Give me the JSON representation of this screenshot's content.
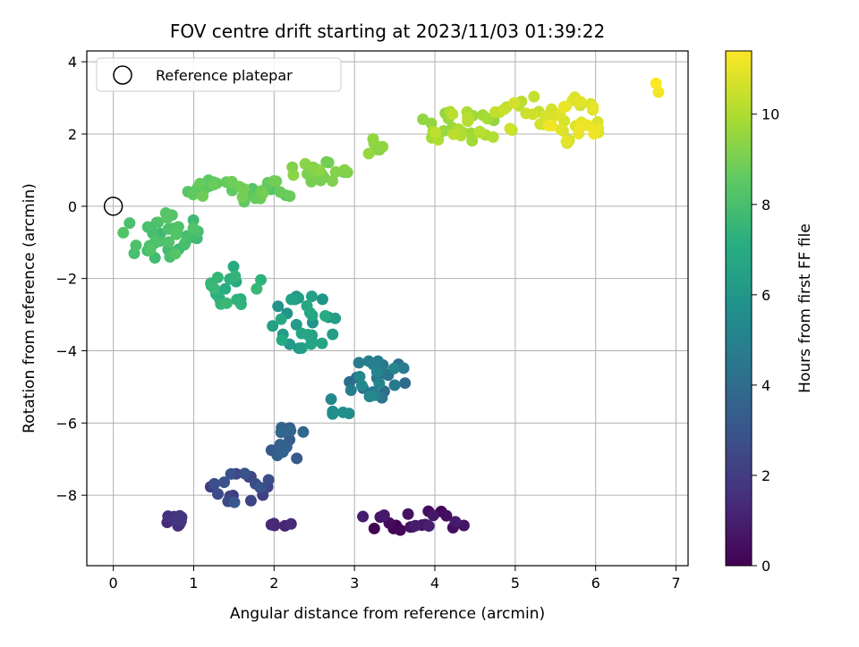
{
  "chart_data": {
    "type": "scatter",
    "title": "FOV centre drift starting at 2023/11/03 01:39:22",
    "xlabel": "Angular distance from reference (arcmin)",
    "ylabel": "Rotation from reference (arcmin)",
    "xlim": [
      -0.33,
      7.15
    ],
    "ylim": [
      -9.95,
      4.3
    ],
    "xticks": [
      0,
      1,
      2,
      3,
      4,
      5,
      6,
      7
    ],
    "yticks": [
      -8,
      -6,
      -4,
      -2,
      0,
      2,
      4
    ],
    "grid": true,
    "legend": {
      "placement": "top-left",
      "entries": [
        "Reference platepar"
      ]
    },
    "reference_point": {
      "x": 0,
      "y": 0
    },
    "colorbar": {
      "label": "Hours from first FF file",
      "colormap": "viridis",
      "range": [
        0,
        11.4
      ],
      "ticks": [
        0,
        2,
        4,
        6,
        8,
        10
      ]
    },
    "series": [
      {
        "clusters": [
          {
            "cx": 3.75,
            "cy": -8.7,
            "rx": 0.75,
            "ry": 0.3,
            "n": 22,
            "h0": 0.0,
            "h1": 1.0
          },
          {
            "cx": 0.85,
            "cy": -8.7,
            "rx": 0.2,
            "ry": 0.25,
            "n": 12,
            "h0": 1.4,
            "h1": 1.9
          },
          {
            "cx": 2.1,
            "cy": -8.8,
            "rx": 0.15,
            "ry": 0.07,
            "n": 5,
            "h0": 1.2,
            "h1": 1.4
          },
          {
            "cx": 1.6,
            "cy": -7.8,
            "rx": 0.4,
            "ry": 0.45,
            "n": 20,
            "h0": 2.0,
            "h1": 3.1
          },
          {
            "cx": 2.2,
            "cy": -6.5,
            "rx": 0.3,
            "ry": 0.5,
            "n": 14,
            "h0": 3.2,
            "h1": 3.9
          },
          {
            "cx": 3.3,
            "cy": -4.8,
            "rx": 0.4,
            "ry": 0.6,
            "n": 28,
            "h0": 4.0,
            "h1": 5.4
          },
          {
            "cx": 2.8,
            "cy": -5.5,
            "rx": 0.15,
            "ry": 0.6,
            "n": 5,
            "h0": 5.3,
            "h1": 5.7
          },
          {
            "cx": 2.4,
            "cy": -3.2,
            "rx": 0.45,
            "ry": 0.75,
            "n": 30,
            "h0": 5.8,
            "h1": 7.0
          },
          {
            "cx": 1.5,
            "cy": -2.2,
            "rx": 0.35,
            "ry": 0.6,
            "n": 18,
            "h0": 7.0,
            "h1": 7.7
          },
          {
            "cx": 0.6,
            "cy": -0.8,
            "rx": 0.5,
            "ry": 0.7,
            "n": 40,
            "h0": 7.7,
            "h1": 8.4
          },
          {
            "cx": 1.6,
            "cy": 0.45,
            "rx": 0.7,
            "ry": 0.35,
            "n": 35,
            "h0": 8.3,
            "h1": 9.0
          },
          {
            "cx": 2.6,
            "cy": 1.0,
            "rx": 0.45,
            "ry": 0.35,
            "n": 20,
            "h0": 8.9,
            "h1": 9.4
          },
          {
            "cx": 3.3,
            "cy": 1.6,
            "rx": 0.15,
            "ry": 0.3,
            "n": 6,
            "h0": 9.3,
            "h1": 9.6
          },
          {
            "cx": 4.3,
            "cy": 2.2,
            "rx": 0.55,
            "ry": 0.45,
            "n": 30,
            "h0": 9.5,
            "h1": 10.3
          },
          {
            "cx": 5.1,
            "cy": 2.6,
            "rx": 0.35,
            "ry": 0.6,
            "n": 18,
            "h0": 10.2,
            "h1": 10.7
          },
          {
            "cx": 5.75,
            "cy": 2.4,
            "rx": 0.35,
            "ry": 0.7,
            "n": 30,
            "h0": 10.6,
            "h1": 11.2
          },
          {
            "cx": 6.75,
            "cy": 3.3,
            "rx": 0.07,
            "ry": 0.35,
            "n": 2,
            "h0": 11.2,
            "h1": 11.4
          }
        ]
      }
    ]
  }
}
